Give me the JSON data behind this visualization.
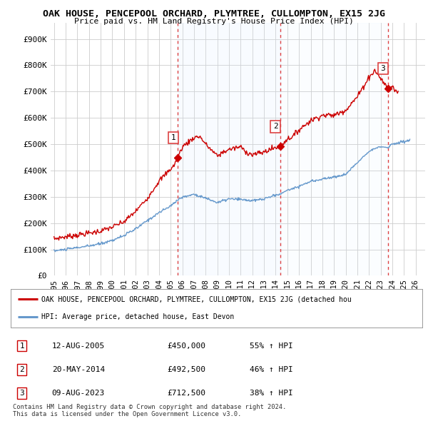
{
  "title": "OAK HOUSE, PENCEPOOL ORCHARD, PLYMTREE, CULLOMPTON, EX15 2JG",
  "subtitle": "Price paid vs. HM Land Registry's House Price Index (HPI)",
  "ylabel_ticks": [
    "£0",
    "£100K",
    "£200K",
    "£300K",
    "£400K",
    "£500K",
    "£600K",
    "£700K",
    "£800K",
    "£900K"
  ],
  "ytick_values": [
    0,
    100000,
    200000,
    300000,
    400000,
    500000,
    600000,
    700000,
    800000,
    900000
  ],
  "ylim": [
    0,
    960000
  ],
  "xlim_start": 1994.7,
  "xlim_end": 2026.8,
  "xtick_years": [
    1995,
    1996,
    1997,
    1998,
    1999,
    2000,
    2001,
    2002,
    2003,
    2004,
    2005,
    2006,
    2007,
    2008,
    2009,
    2010,
    2011,
    2012,
    2013,
    2014,
    2015,
    2016,
    2017,
    2018,
    2019,
    2020,
    2021,
    2022,
    2023,
    2024,
    2025,
    2026
  ],
  "sale_points": [
    {
      "year": 2005.617,
      "price": 450000,
      "label": "1"
    },
    {
      "year": 2014.383,
      "price": 492500,
      "label": "2"
    },
    {
      "year": 2023.608,
      "price": 712500,
      "label": "3"
    }
  ],
  "vline_color": "#dd4444",
  "red_line_color": "#cc0000",
  "blue_line_color": "#6699cc",
  "shade_color": "#ddeeff",
  "hatch_color": "#aaaaaa",
  "background_color": "#ffffff",
  "grid_color": "#cccccc",
  "legend_label_red": "OAK HOUSE, PENCEPOOL ORCHARD, PLYMTREE, CULLOMPTON, EX15 2JG (detached hou",
  "legend_label_blue": "HPI: Average price, detached house, East Devon",
  "table_rows": [
    {
      "num": "1",
      "date": "12-AUG-2005",
      "price": "£450,000",
      "pct": "55% ↑ HPI"
    },
    {
      "num": "2",
      "date": "20-MAY-2014",
      "price": "£492,500",
      "pct": "46% ↑ HPI"
    },
    {
      "num": "3",
      "date": "09-AUG-2023",
      "price": "£712,500",
      "pct": "38% ↑ HPI"
    }
  ],
  "footer_text": "Contains HM Land Registry data © Crown copyright and database right 2024.\nThis data is licensed under the Open Government Licence v3.0."
}
